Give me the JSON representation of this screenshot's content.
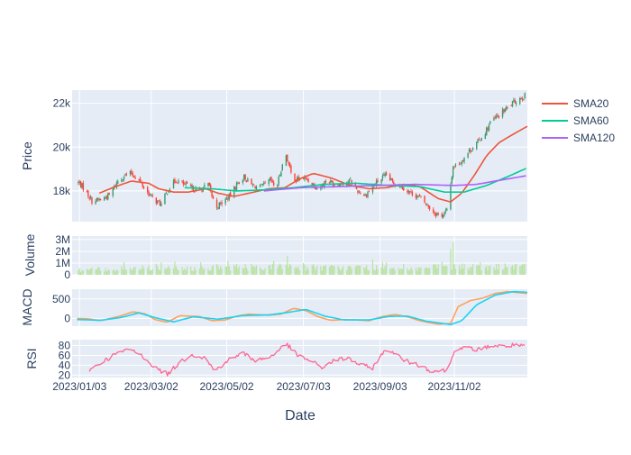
{
  "chart_data": {
    "type": "candlestick",
    "xlabel": "Date",
    "x_tick_labels": [
      "2023/01/03",
      "2023/03/02",
      "2023/05/02",
      "2023/07/03",
      "2023/09/03",
      "2023/11/02"
    ],
    "x_tick_dates": [
      "2023-01-03",
      "2023-03-02",
      "2023-05-02",
      "2023-07-03",
      "2023-09-03",
      "2023-11-02"
    ],
    "x_range": [
      "2022-12-28",
      "2023-12-31"
    ],
    "panels": {
      "price": {
        "ylabel": "Price",
        "ylim": [
          16600,
          22600
        ],
        "ticks": [
          18000,
          20000,
          22000
        ],
        "tick_labels": [
          "18k",
          "20k",
          "22k"
        ]
      },
      "volume": {
        "ylabel": "Volume",
        "ylim": [
          0,
          3300000
        ],
        "ticks": [
          0,
          1000000,
          2000000,
          3000000
        ],
        "tick_labels": [
          "0",
          "1M",
          "2M",
          "3M"
        ]
      },
      "macd": {
        "ylabel": "MACD",
        "ylim": [
          -200,
          750
        ],
        "ticks": [
          0,
          500
        ],
        "tick_labels": [
          "0",
          "500"
        ]
      },
      "rsi": {
        "ylabel": "RSI",
        "ylim": [
          15,
          92
        ],
        "ticks": [
          20,
          40,
          60,
          80
        ],
        "tick_labels": [
          "20",
          "40",
          "60",
          "80"
        ]
      }
    },
    "legend": {
      "placement": "top-right",
      "entries": [
        {
          "name": "SMA20",
          "color": "#ef553b"
        },
        {
          "name": "SMA60",
          "color": "#00cc96"
        },
        {
          "name": "SMA120",
          "color": "#ab63fa"
        }
      ]
    },
    "colors": {
      "up": "#3d9970",
      "down": "#ff4136",
      "volume": "#b8e3a0",
      "macd": "#ffa15a",
      "signal": "#19d3f3",
      "rsi": "#ff6692",
      "panel_bg": "#e5ecf6"
    },
    "anchors": {
      "close": [
        [
          "2023-01-01",
          18450
        ],
        [
          "2023-01-07",
          18100
        ],
        [
          "2023-01-13",
          17550
        ],
        [
          "2023-01-20",
          17600
        ],
        [
          "2023-01-27",
          17800
        ],
        [
          "2023-02-03",
          18450
        ],
        [
          "2023-02-08",
          18700
        ],
        [
          "2023-02-14",
          18800
        ],
        [
          "2023-02-20",
          18500
        ],
        [
          "2023-02-26",
          18000
        ],
        [
          "2023-03-04",
          17600
        ],
        [
          "2023-03-10",
          17400
        ],
        [
          "2023-03-16",
          18100
        ],
        [
          "2023-03-22",
          18500
        ],
        [
          "2023-03-28",
          18300
        ],
        [
          "2023-04-03",
          18150
        ],
        [
          "2023-04-10",
          18000
        ],
        [
          "2023-04-17",
          18300
        ],
        [
          "2023-04-23",
          17250
        ],
        [
          "2023-04-29",
          17500
        ],
        [
          "2023-05-05",
          17800
        ],
        [
          "2023-05-10",
          18300
        ],
        [
          "2023-05-16",
          18650
        ],
        [
          "2023-05-21",
          18300
        ],
        [
          "2023-05-28",
          18150
        ],
        [
          "2023-06-03",
          18300
        ],
        [
          "2023-06-06",
          18500
        ],
        [
          "2023-06-11",
          18100
        ],
        [
          "2023-06-15",
          19000
        ],
        [
          "2023-06-19",
          19650
        ],
        [
          "2023-06-23",
          18800
        ],
        [
          "2023-06-27",
          18500
        ],
        [
          "2023-07-03",
          18600
        ],
        [
          "2023-07-09",
          18400
        ],
        [
          "2023-07-15",
          18100
        ],
        [
          "2023-07-22",
          18500
        ],
        [
          "2023-07-28",
          18300
        ],
        [
          "2023-08-03",
          18350
        ],
        [
          "2023-08-10",
          18450
        ],
        [
          "2023-08-16",
          18000
        ],
        [
          "2023-08-22",
          17800
        ],
        [
          "2023-08-28",
          18200
        ],
        [
          "2023-09-02",
          18500
        ],
        [
          "2023-09-08",
          18700
        ],
        [
          "2023-09-13",
          18400
        ],
        [
          "2023-09-18",
          18300
        ],
        [
          "2023-09-23",
          18100
        ],
        [
          "2023-09-28",
          17900
        ],
        [
          "2023-10-05",
          17700
        ],
        [
          "2023-10-12",
          17300
        ],
        [
          "2023-10-17",
          17000
        ],
        [
          "2023-10-22",
          16850
        ],
        [
          "2023-10-27",
          17100
        ],
        [
          "2023-11-01",
          19100
        ],
        [
          "2023-11-07",
          19300
        ],
        [
          "2023-11-12",
          19700
        ],
        [
          "2023-11-17",
          20000
        ],
        [
          "2023-11-22",
          20300
        ],
        [
          "2023-11-27",
          20700
        ],
        [
          "2023-12-02",
          21200
        ],
        [
          "2023-12-07",
          21400
        ],
        [
          "2023-12-13",
          21700
        ],
        [
          "2023-12-19",
          22000
        ],
        [
          "2023-12-24",
          22200
        ],
        [
          "2023-12-31",
          22400
        ]
      ],
      "sma20": [
        [
          "2023-01-19",
          17900
        ],
        [
          "2023-02-01",
          18200
        ],
        [
          "2023-02-14",
          18450
        ],
        [
          "2023-02-28",
          18350
        ],
        [
          "2023-03-08",
          18100
        ],
        [
          "2023-03-20",
          17950
        ],
        [
          "2023-04-01",
          17950
        ],
        [
          "2023-04-15",
          18100
        ],
        [
          "2023-04-25",
          17900
        ],
        [
          "2023-05-08",
          17750
        ],
        [
          "2023-05-20",
          17900
        ],
        [
          "2023-06-05",
          18100
        ],
        [
          "2023-06-18",
          18150
        ],
        [
          "2023-06-30",
          18550
        ],
        [
          "2023-07-11",
          18800
        ],
        [
          "2023-07-25",
          18600
        ],
        [
          "2023-08-10",
          18250
        ],
        [
          "2023-08-25",
          18100
        ],
        [
          "2023-09-08",
          18150
        ],
        [
          "2023-09-22",
          18300
        ],
        [
          "2023-10-05",
          18200
        ],
        [
          "2023-10-20",
          17650
        ],
        [
          "2023-10-30",
          17500
        ],
        [
          "2023-11-08",
          17900
        ],
        [
          "2023-11-18",
          18700
        ],
        [
          "2023-11-28",
          19600
        ],
        [
          "2023-12-08",
          20200
        ],
        [
          "2023-12-20",
          20600
        ],
        [
          "2023-12-31",
          20950
        ]
      ],
      "sma60": [
        [
          "2023-03-29",
          18150
        ],
        [
          "2023-04-20",
          18100
        ],
        [
          "2023-05-10",
          18000
        ],
        [
          "2023-06-01",
          18050
        ],
        [
          "2023-06-25",
          18150
        ],
        [
          "2023-07-20",
          18300
        ],
        [
          "2023-08-15",
          18350
        ],
        [
          "2023-09-10",
          18250
        ],
        [
          "2023-10-05",
          18200
        ],
        [
          "2023-10-25",
          17950
        ],
        [
          "2023-11-10",
          17950
        ],
        [
          "2023-11-28",
          18250
        ],
        [
          "2023-12-15",
          18650
        ],
        [
          "2023-12-31",
          19050
        ]
      ],
      "sma120": [
        [
          "2023-06-01",
          18000
        ],
        [
          "2023-07-01",
          18150
        ],
        [
          "2023-08-01",
          18200
        ],
        [
          "2023-09-01",
          18250
        ],
        [
          "2023-10-01",
          18300
        ],
        [
          "2023-11-01",
          18250
        ],
        [
          "2023-11-20",
          18300
        ],
        [
          "2023-12-10",
          18500
        ],
        [
          "2023-12-31",
          18700
        ]
      ],
      "volume": [
        [
          "2023-01-01",
          400000
        ],
        [
          "2023-02-01",
          500000
        ],
        [
          "2023-03-01",
          600000
        ],
        [
          "2023-04-01",
          550000
        ],
        [
          "2023-05-01",
          650000
        ],
        [
          "2023-06-01",
          700000
        ],
        [
          "2023-07-01",
          650000
        ],
        [
          "2023-08-01",
          600000
        ],
        [
          "2023-09-01",
          650000
        ],
        [
          "2023-10-01",
          550000
        ],
        [
          "2023-11-01",
          700000
        ],
        [
          "2023-12-01",
          650000
        ],
        [
          "2023-12-31",
          700000
        ]
      ],
      "volume_spikes": [
        [
          "2023-02-08",
          1100000
        ],
        [
          "2023-03-10",
          1050000
        ],
        [
          "2023-05-03",
          1200000
        ],
        [
          "2023-06-17",
          2500000
        ],
        [
          "2023-06-18",
          2200000
        ],
        [
          "2023-06-20",
          1600000
        ],
        [
          "2023-08-28",
          1300000
        ],
        [
          "2023-09-05",
          1050000
        ],
        [
          "2023-10-30",
          2200000
        ],
        [
          "2023-11-01",
          2800000
        ],
        [
          "2023-11-04",
          1500000
        ],
        [
          "2023-12-31",
          1200000
        ]
      ],
      "macd": [
        [
          "2023-01-01",
          0
        ],
        [
          "2023-01-10",
          -10
        ],
        [
          "2023-01-20",
          -60
        ],
        [
          "2023-02-05",
          60
        ],
        [
          "2023-02-15",
          170
        ],
        [
          "2023-02-25",
          120
        ],
        [
          "2023-03-05",
          -30
        ],
        [
          "2023-03-15",
          -100
        ],
        [
          "2023-03-25",
          70
        ],
        [
          "2023-04-01",
          60
        ],
        [
          "2023-04-10",
          50
        ],
        [
          "2023-04-20",
          -60
        ],
        [
          "2023-05-01",
          -40
        ],
        [
          "2023-05-10",
          60
        ],
        [
          "2023-05-20",
          110
        ],
        [
          "2023-06-05",
          80
        ],
        [
          "2023-06-15",
          110
        ],
        [
          "2023-06-25",
          260
        ],
        [
          "2023-07-05",
          200
        ],
        [
          "2023-07-15",
          40
        ],
        [
          "2023-07-25",
          -50
        ],
        [
          "2023-08-05",
          -30
        ],
        [
          "2023-08-15",
          -40
        ],
        [
          "2023-08-25",
          -60
        ],
        [
          "2023-09-05",
          50
        ],
        [
          "2023-09-15",
          100
        ],
        [
          "2023-09-25",
          40
        ],
        [
          "2023-10-05",
          -60
        ],
        [
          "2023-10-20",
          -150
        ],
        [
          "2023-10-30",
          -130
        ],
        [
          "2023-11-05",
          300
        ],
        [
          "2023-11-15",
          460
        ],
        [
          "2023-11-25",
          520
        ],
        [
          "2023-12-05",
          640
        ],
        [
          "2023-12-15",
          690
        ],
        [
          "2023-12-31",
          640
        ]
      ],
      "signal": [
        [
          "2023-01-01",
          -30
        ],
        [
          "2023-01-20",
          -50
        ],
        [
          "2023-02-05",
          20
        ],
        [
          "2023-02-20",
          140
        ],
        [
          "2023-03-05",
          20
        ],
        [
          "2023-03-20",
          -90
        ],
        [
          "2023-04-05",
          40
        ],
        [
          "2023-04-25",
          -20
        ],
        [
          "2023-05-15",
          70
        ],
        [
          "2023-06-05",
          90
        ],
        [
          "2023-06-20",
          150
        ],
        [
          "2023-07-05",
          230
        ],
        [
          "2023-07-20",
          60
        ],
        [
          "2023-08-05",
          -40
        ],
        [
          "2023-08-25",
          -40
        ],
        [
          "2023-09-10",
          50
        ],
        [
          "2023-09-25",
          60
        ],
        [
          "2023-10-10",
          -70
        ],
        [
          "2023-10-30",
          -160
        ],
        [
          "2023-11-08",
          -60
        ],
        [
          "2023-11-20",
          350
        ],
        [
          "2023-12-05",
          600
        ],
        [
          "2023-12-20",
          690
        ],
        [
          "2023-12-31",
          670
        ]
      ],
      "rsi": [
        [
          "2023-01-11",
          30
        ],
        [
          "2023-01-20",
          45
        ],
        [
          "2023-02-03",
          65
        ],
        [
          "2023-02-14",
          72
        ],
        [
          "2023-02-25",
          55
        ],
        [
          "2023-03-05",
          35
        ],
        [
          "2023-03-15",
          22
        ],
        [
          "2023-03-25",
          45
        ],
        [
          "2023-04-03",
          62
        ],
        [
          "2023-04-15",
          55
        ],
        [
          "2023-04-22",
          28
        ],
        [
          "2023-05-03",
          50
        ],
        [
          "2023-05-15",
          65
        ],
        [
          "2023-05-25",
          50
        ],
        [
          "2023-06-05",
          55
        ],
        [
          "2023-06-15",
          75
        ],
        [
          "2023-06-20",
          82
        ],
        [
          "2023-06-28",
          60
        ],
        [
          "2023-07-08",
          50
        ],
        [
          "2023-07-18",
          35
        ],
        [
          "2023-07-28",
          50
        ],
        [
          "2023-08-08",
          55
        ],
        [
          "2023-08-18",
          40
        ],
        [
          "2023-08-28",
          35
        ],
        [
          "2023-09-05",
          65
        ],
        [
          "2023-09-12",
          70
        ],
        [
          "2023-09-22",
          50
        ],
        [
          "2023-10-05",
          40
        ],
        [
          "2023-10-15",
          28
        ],
        [
          "2023-10-28",
          30
        ],
        [
          "2023-11-02",
          72
        ],
        [
          "2023-11-12",
          75
        ],
        [
          "2023-11-22",
          72
        ],
        [
          "2023-12-02",
          80
        ],
        [
          "2023-12-12",
          78
        ],
        [
          "2023-12-22",
          82
        ],
        [
          "2023-12-31",
          75
        ]
      ]
    }
  }
}
